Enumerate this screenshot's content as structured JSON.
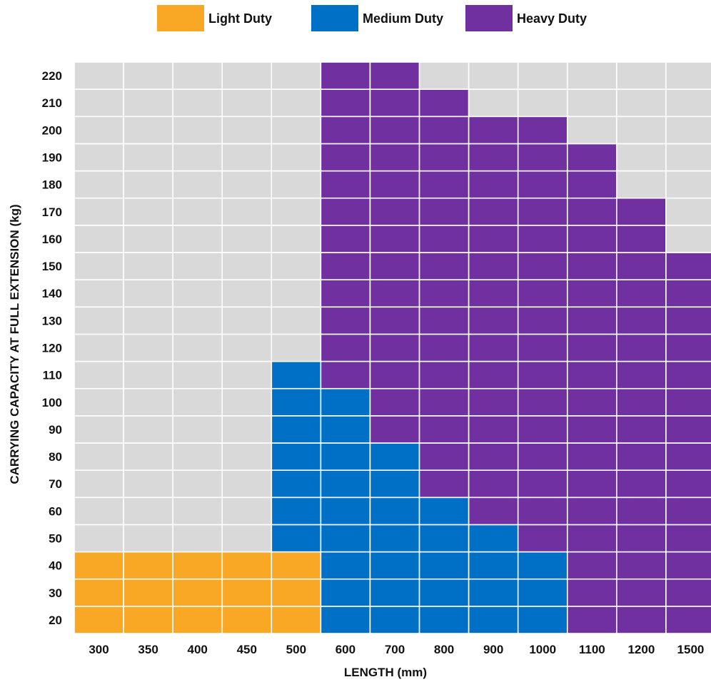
{
  "chart_data": {
    "type": "heatmap",
    "xlabel": "LENGTH (mm)",
    "ylabel": "CARRYING CAPACITY AT FULL EXTENSION (kg)",
    "x_categories": [
      "300",
      "350",
      "400",
      "450",
      "500",
      "600",
      "700",
      "800",
      "900",
      "1000",
      "1100",
      "1200",
      "1500"
    ],
    "y_categories": [
      "20",
      "30",
      "40",
      "50",
      "60",
      "70",
      "80",
      "90",
      "100",
      "110",
      "120",
      "130",
      "140",
      "150",
      "160",
      "170",
      "180",
      "190",
      "200",
      "210",
      "220"
    ],
    "legend_position": "top",
    "grid": true,
    "series": [
      {
        "name": "Light Duty",
        "color": "#F9A825",
        "ranges": [
          {
            "length": "300",
            "min_kg": 20,
            "max_kg": 40
          },
          {
            "length": "350",
            "min_kg": 20,
            "max_kg": 40
          },
          {
            "length": "400",
            "min_kg": 20,
            "max_kg": 40
          },
          {
            "length": "450",
            "min_kg": 20,
            "max_kg": 40
          },
          {
            "length": "500",
            "min_kg": 20,
            "max_kg": 40
          }
        ]
      },
      {
        "name": "Medium Duty",
        "color": "#0070C6",
        "ranges": [
          {
            "length": "500",
            "min_kg": 50,
            "max_kg": 110
          },
          {
            "length": "600",
            "min_kg": 20,
            "max_kg": 100
          },
          {
            "length": "700",
            "min_kg": 20,
            "max_kg": 80
          },
          {
            "length": "800",
            "min_kg": 20,
            "max_kg": 60
          },
          {
            "length": "900",
            "min_kg": 20,
            "max_kg": 50
          },
          {
            "length": "1000",
            "min_kg": 20,
            "max_kg": 40
          }
        ]
      },
      {
        "name": "Heavy Duty",
        "color": "#7030A0",
        "ranges": [
          {
            "length": "600",
            "min_kg": 110,
            "max_kg": 220
          },
          {
            "length": "700",
            "min_kg": 90,
            "max_kg": 220
          },
          {
            "length": "800",
            "min_kg": 70,
            "max_kg": 210
          },
          {
            "length": "900",
            "min_kg": 60,
            "max_kg": 200
          },
          {
            "length": "1000",
            "min_kg": 50,
            "max_kg": 200
          },
          {
            "length": "1100",
            "min_kg": 20,
            "max_kg": 190
          },
          {
            "length": "1200",
            "min_kg": 20,
            "max_kg": 170
          },
          {
            "length": "1500",
            "min_kg": 20,
            "max_kg": 150
          }
        ]
      }
    ],
    "background_color": "#D9D9D9"
  }
}
